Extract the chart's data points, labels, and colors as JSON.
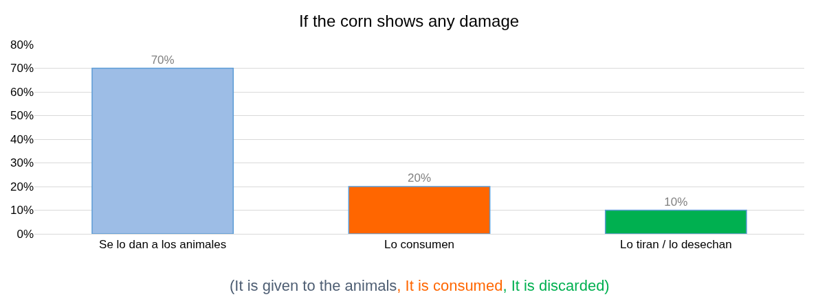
{
  "chart_data": {
    "type": "bar",
    "title": "If the corn shows any damage",
    "categories": [
      "Se lo dan a los animales",
      "Lo consumen",
      "Lo tiran / lo desechan"
    ],
    "values": [
      70,
      20,
      10
    ],
    "colors": [
      "#9dbde6",
      "#ff6600",
      "#00b050"
    ],
    "value_labels": [
      "70%",
      "20%",
      "10%"
    ],
    "ylim": [
      0,
      80
    ],
    "yticks": [
      {
        "value": 0,
        "label": "0%"
      },
      {
        "value": 10,
        "label": "10%"
      },
      {
        "value": 20,
        "label": "20%"
      },
      {
        "value": 30,
        "label": "30%"
      },
      {
        "value": 40,
        "label": "40%"
      },
      {
        "value": 50,
        "label": "50%"
      },
      {
        "value": 60,
        "label": "60%"
      },
      {
        "value": 70,
        "label": "70%"
      },
      {
        "value": 80,
        "label": "80%"
      }
    ],
    "grid": "y",
    "annotations": [
      "(It is given to the animals",
      ", It is consumed",
      ", It is discarded)"
    ]
  }
}
